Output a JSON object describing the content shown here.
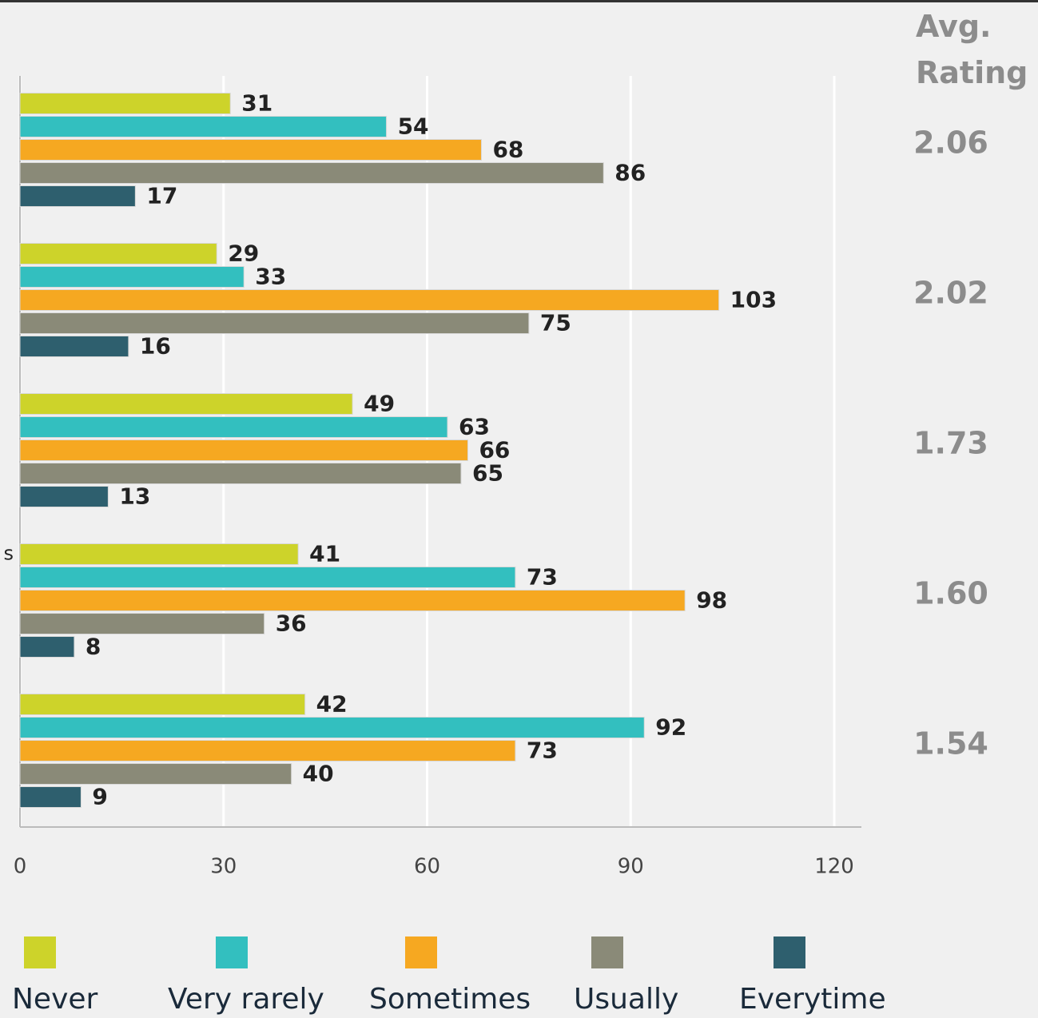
{
  "chart_data": {
    "type": "bar",
    "orientation": "horizontal",
    "categories": [
      null,
      null,
      null,
      "s",
      null
    ],
    "series": [
      {
        "name": "Never",
        "color": "#cdd32a",
        "values": [
          31,
          29,
          49,
          41,
          42
        ]
      },
      {
        "name": "Very rarely",
        "color": "#33bfbf",
        "values": [
          54,
          33,
          63,
          73,
          92
        ]
      },
      {
        "name": "Sometimes",
        "color": "#f6a821",
        "values": [
          68,
          103,
          66,
          98,
          73
        ]
      },
      {
        "name": "Usually",
        "color": "#8a8a78",
        "values": [
          86,
          75,
          65,
          36,
          40
        ]
      },
      {
        "name": "Everytime",
        "color": "#2e5f6e",
        "values": [
          17,
          16,
          13,
          8,
          9
        ]
      }
    ],
    "xlim": [
      0,
      124
    ],
    "xticks": [
      0,
      30,
      60,
      90,
      120
    ],
    "grid": true,
    "legend": "bottom",
    "avg_rating": {
      "title": "Avg. Rating",
      "values": [
        2.06,
        2.02,
        1.73,
        1.6,
        1.54
      ],
      "value_labels": [
        "2.06",
        "2.02",
        "1.73",
        "1.60",
        "1.54"
      ]
    }
  }
}
